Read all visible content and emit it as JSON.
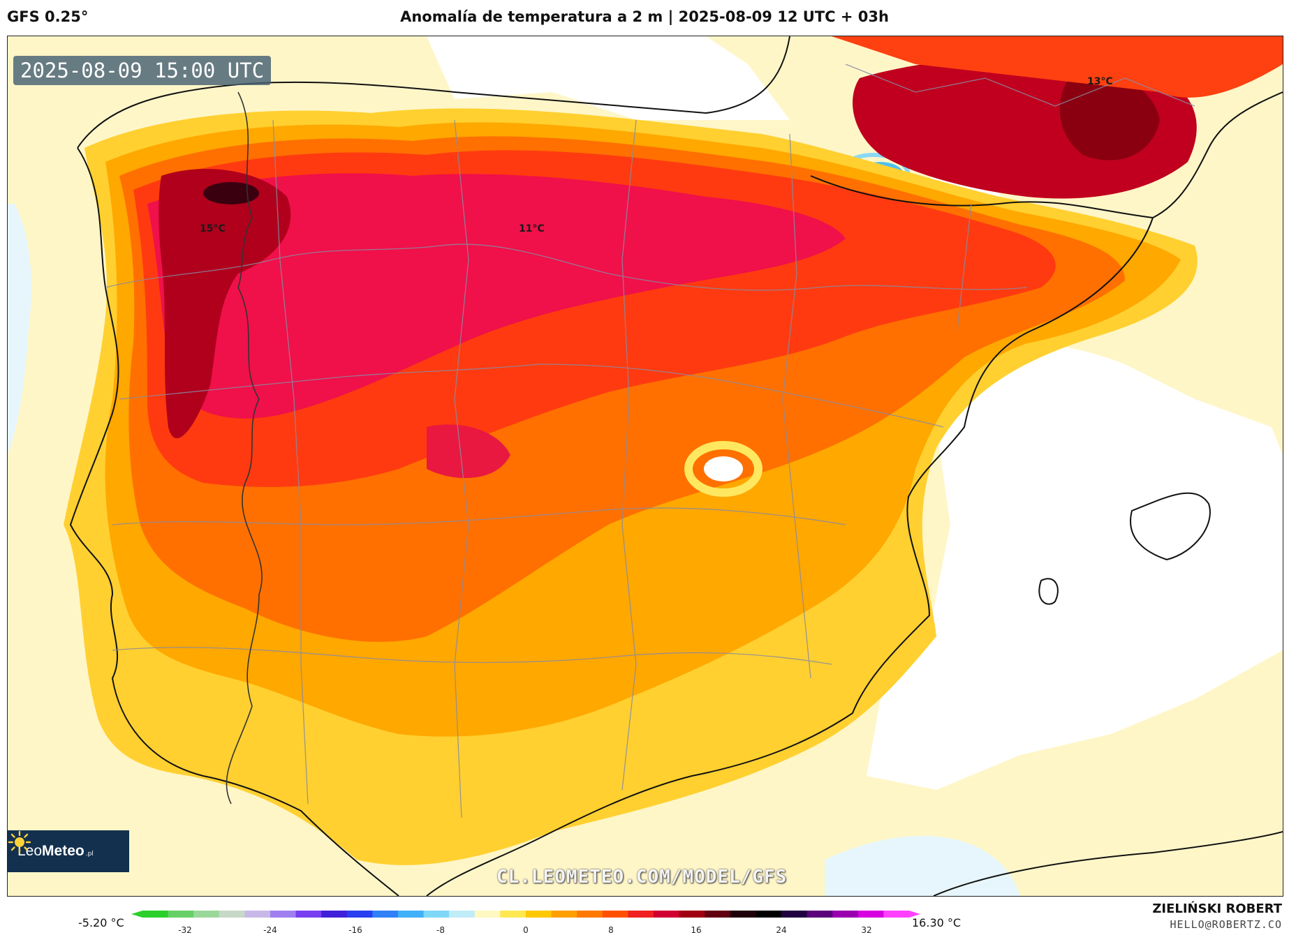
{
  "header": {
    "model": "GFS 0.25°",
    "title": "Anomalía de temperatura a 2 m | 2025-08-09 12 UTC + 03h"
  },
  "map": {
    "valid_time": "2025-08-09 15:00 UTC",
    "labels": [
      "15°C",
      "11°C",
      "13°C"
    ],
    "watermark": "CL.LEOMETEO.COM/MODEL/GFS",
    "logo": {
      "brand_light": "Leo",
      "brand_bold": "Meteo",
      "suffix": ".pl",
      "icon": "sun-icon"
    }
  },
  "colorbar": {
    "min_label": "-5.20 °C",
    "max_label": "16.30 °C",
    "ticks": [
      "-32",
      "-24",
      "-16",
      "-8",
      "0",
      "8",
      "16",
      "24",
      "32"
    ],
    "colors": [
      "#2bd02b",
      "#66d066",
      "#9ad89a",
      "#c8d8c8",
      "#c8b8e8",
      "#a080f0",
      "#7840f0",
      "#4020d8",
      "#2840f0",
      "#3080f8",
      "#40b0f8",
      "#80d8f8",
      "#c0ecf8",
      "#fff8c0",
      "#ffe850",
      "#ffc800",
      "#ffa000",
      "#ff7800",
      "#ff5000",
      "#f02020",
      "#d00030",
      "#a00010",
      "#600010",
      "#200008",
      "#000000",
      "#200040",
      "#5a007a",
      "#9a00b0",
      "#d800e0",
      "#ff40ff"
    ]
  },
  "credits": {
    "author": "ZIELIŃSKI ROBERT",
    "email": "HELLO@ROBERTZ.CO"
  }
}
